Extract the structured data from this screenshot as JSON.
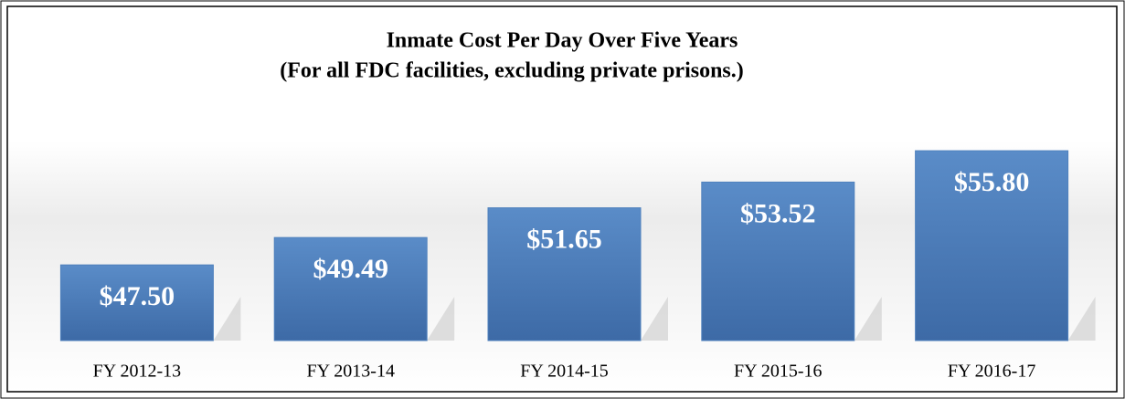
{
  "chart_data": {
    "type": "bar",
    "title": "Inmate Cost Per Day Over Five Years",
    "subtitle": "(For all FDC facilities, excluding private prisons.)",
    "categories": [
      "FY 2012-13",
      "FY 2013-14",
      "FY 2014-15",
      "FY 2015-16",
      "FY 2016-17"
    ],
    "values": [
      47.5,
      49.49,
      51.65,
      53.52,
      55.8
    ],
    "value_labels": [
      "$47.50",
      "$49.49",
      "$51.65",
      "$53.52",
      "$55.80"
    ],
    "color": "#4f81bd",
    "ylim": [
      42,
      57
    ]
  }
}
